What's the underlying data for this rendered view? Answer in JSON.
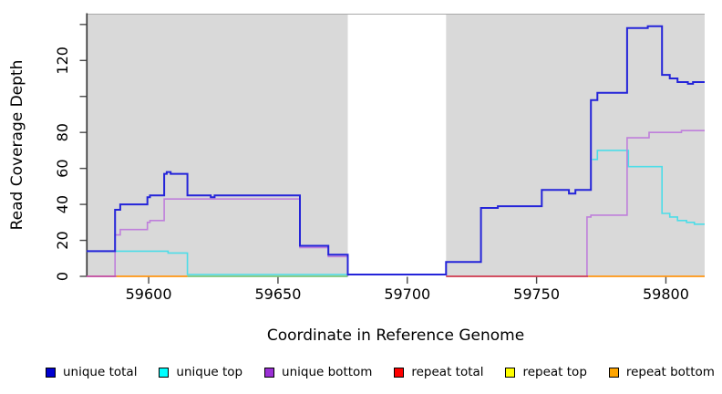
{
  "chart_data": {
    "type": "line",
    "subtype": "step-coverage-plot",
    "title": "",
    "xlabel": "Coordinate in Reference Genome",
    "ylabel": "Read Coverage Depth",
    "xlim": [
      59576,
      59815
    ],
    "ylim": [
      0,
      146
    ],
    "grid": false,
    "plot_bg": "#d9d9d9",
    "gap_region": {
      "x1": 59677,
      "x2": 59715,
      "color": "#ffffff"
    },
    "x_ticks": [
      {
        "value": 59600,
        "label": "59600"
      },
      {
        "value": 59650,
        "label": "59650"
      },
      {
        "value": 59700,
        "label": "59700"
      },
      {
        "value": 59750,
        "label": "59750"
      },
      {
        "value": 59800,
        "label": "59800"
      }
    ],
    "y_ticks": [
      {
        "value": 0,
        "label": "0"
      },
      {
        "value": 20,
        "label": "20"
      },
      {
        "value": 40,
        "label": "40"
      },
      {
        "value": 60,
        "label": "60"
      },
      {
        "value": 80,
        "label": "80"
      },
      {
        "value": 100,
        "label": ""
      },
      {
        "value": 120,
        "label": "120"
      },
      {
        "value": 140,
        "label": ""
      }
    ],
    "series": [
      {
        "name": "unique total",
        "line_color": "#2424d9",
        "line_width": 2,
        "segments": [
          [
            [
              59576,
              14
            ],
            [
              59587,
              37
            ],
            [
              59589,
              40
            ],
            [
              59599.5,
              44
            ],
            [
              59600.5,
              45
            ],
            [
              59606,
              57
            ],
            [
              59607,
              58
            ],
            [
              59608.5,
              57
            ],
            [
              59615,
              45
            ],
            [
              59624,
              44
            ],
            [
              59625.5,
              45
            ],
            [
              59658.5,
              17
            ],
            [
              59669.5,
              12
            ],
            [
              59677,
              1
            ],
            [
              59715,
              8
            ],
            [
              59728.5,
              38
            ],
            [
              59735,
              39
            ],
            [
              59752,
              48
            ],
            [
              59762.5,
              46
            ],
            [
              59765,
              48
            ],
            [
              59771,
              98
            ],
            [
              59773.5,
              102
            ],
            [
              59785,
              138
            ],
            [
              59793,
              139
            ],
            [
              59798.5,
              112
            ],
            [
              59801.5,
              110
            ],
            [
              59804.5,
              108
            ],
            [
              59808.5,
              107
            ],
            [
              59810.5,
              108
            ],
            [
              59815,
              108
            ]
          ]
        ]
      },
      {
        "name": "unique top",
        "line_color": "#4cdde8",
        "line_width": 1.6,
        "segments": [
          [
            [
              59576,
              14
            ],
            [
              59607.5,
              13
            ],
            [
              59615,
              1
            ],
            [
              59677,
              1
            ]
          ],
          [
            [
              59771.5,
              65
            ],
            [
              59773.5,
              70
            ],
            [
              59785.5,
              61
            ],
            [
              59798.5,
              35
            ],
            [
              59801.5,
              33
            ],
            [
              59804.5,
              31
            ],
            [
              59808,
              30
            ],
            [
              59811,
              29
            ],
            [
              59815,
              29
            ]
          ]
        ]
      },
      {
        "name": "unique bottom",
        "line_color": "#bf7fdb",
        "line_width": 1.6,
        "segments": [
          [
            [
              59576,
              0
            ],
            [
              59587,
              23
            ],
            [
              59589,
              26
            ],
            [
              59599.5,
              30
            ],
            [
              59600.5,
              31
            ],
            [
              59606,
              43
            ],
            [
              59658.5,
              16
            ],
            [
              59669.5,
              11
            ],
            [
              59677,
              0
            ]
          ],
          [
            [
              59715,
              0
            ],
            [
              59769.5,
              33
            ],
            [
              59771,
              34
            ],
            [
              59785,
              77
            ],
            [
              59793.5,
              80
            ],
            [
              59806,
              81
            ],
            [
              59815,
              81
            ]
          ]
        ]
      },
      {
        "name": "repeat total",
        "line_color": "#d2404f",
        "line_width": 1.8,
        "segments": [
          [
            [
              59715,
              0
            ],
            [
              59770,
              0
            ]
          ]
        ]
      },
      {
        "name": "repeat top",
        "line_color": "#7cc87c",
        "line_width": 1.8,
        "segments": [
          [
            [
              59615,
              0
            ],
            [
              59677,
              0
            ]
          ]
        ]
      },
      {
        "name": "repeat bottom",
        "line_color": "#ff9512",
        "line_width": 1.8,
        "segments": [
          [
            [
              59587.5,
              0
            ],
            [
              59615,
              0
            ]
          ],
          [
            [
              59770,
              0
            ],
            [
              59815,
              0
            ]
          ]
        ]
      }
    ],
    "baseline_extra": {
      "color": "#c4519f",
      "x1": 59576,
      "x2": 59587.5,
      "value": 0
    },
    "legend": {
      "position": "bottom",
      "items": [
        {
          "label": "unique total",
          "swatch_color": "#0000d0"
        },
        {
          "label": "unique top",
          "swatch_color": "#00ffff"
        },
        {
          "label": "unique bottom",
          "swatch_color": "#9b30d5"
        },
        {
          "label": "repeat total",
          "swatch_color": "#ff0000"
        },
        {
          "label": "repeat top",
          "swatch_color": "#ffff00"
        },
        {
          "label": "repeat bottom",
          "swatch_color": "#ffa500"
        }
      ]
    }
  }
}
